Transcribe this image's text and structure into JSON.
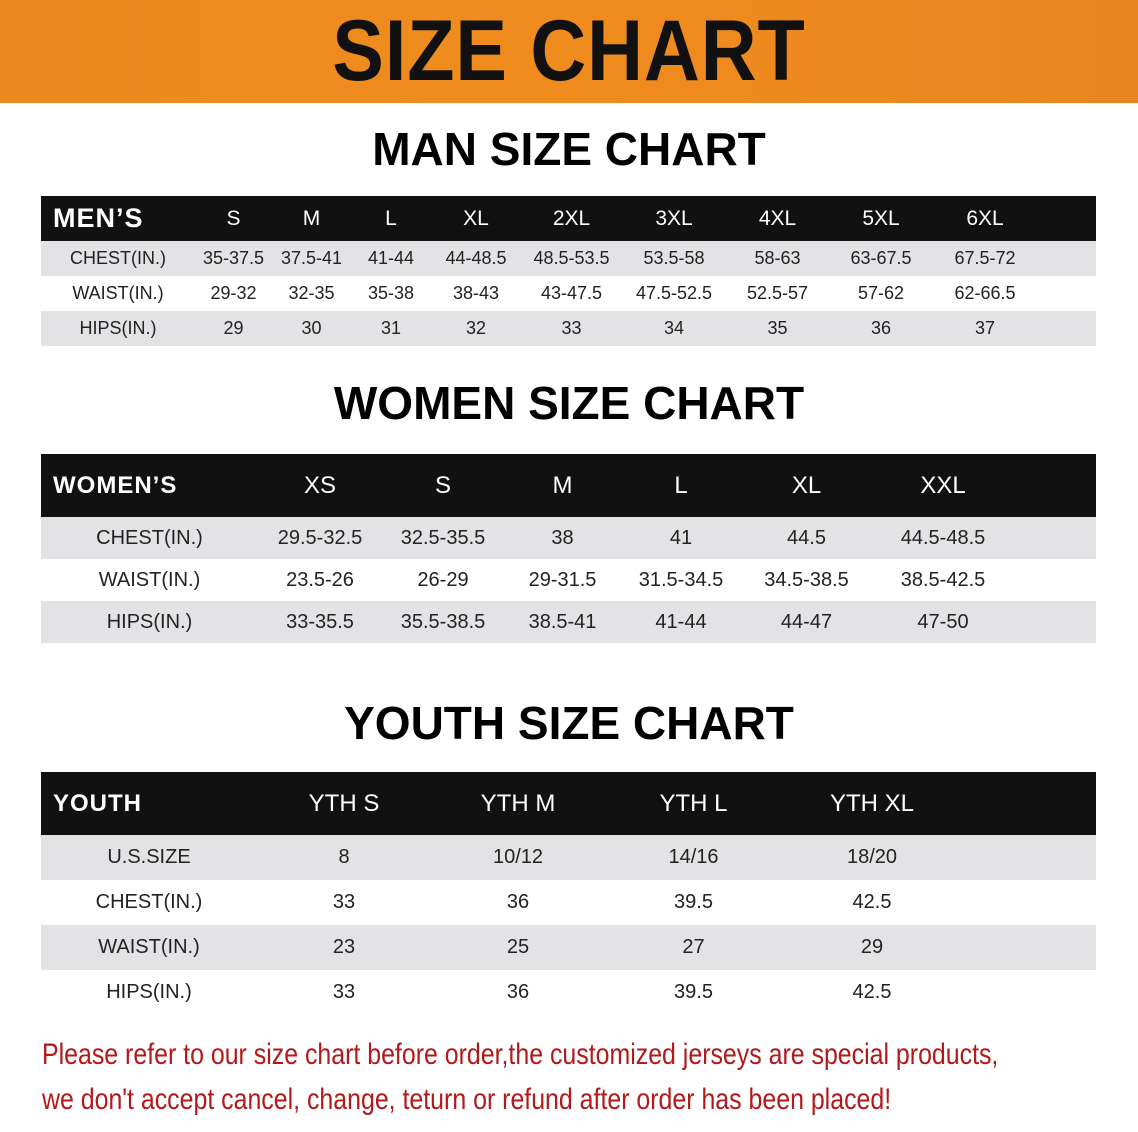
{
  "banner_title": "SIZE CHART",
  "men": {
    "title": "MAN SIZE CHART",
    "header": [
      "MEN’S",
      "S",
      "M",
      "L",
      "XL",
      "2XL",
      "3XL",
      "4XL",
      "5XL",
      "6XL"
    ],
    "rows": [
      [
        "CHEST(IN.)",
        "35-37.5",
        "37.5-41",
        "41-44",
        "44-48.5",
        "48.5-53.5",
        "53.5-58",
        "58-63",
        "63-67.5",
        "67.5-72"
      ],
      [
        "WAIST(IN.)",
        "29-32",
        "32-35",
        "35-38",
        "38-43",
        "43-47.5",
        "47.5-52.5",
        "52.5-57",
        "57-62",
        "62-66.5"
      ],
      [
        "HIPS(IN.)",
        "29",
        "30",
        "31",
        "32",
        "33",
        "34",
        "35",
        "36",
        "37"
      ]
    ]
  },
  "women": {
    "title": "WOMEN SIZE CHART",
    "header": [
      "WOMEN’S",
      "XS",
      "S",
      "M",
      "L",
      "XL",
      "XXL"
    ],
    "rows": [
      [
        "CHEST(IN.)",
        "29.5-32.5",
        "32.5-35.5",
        "38",
        "41",
        "44.5",
        "44.5-48.5"
      ],
      [
        "WAIST(IN.)",
        "23.5-26",
        "26-29",
        "29-31.5",
        "31.5-34.5",
        "34.5-38.5",
        "38.5-42.5"
      ],
      [
        "HIPS(IN.)",
        "33-35.5",
        "35.5-38.5",
        "38.5-41",
        "41-44",
        "44-47",
        "47-50"
      ]
    ]
  },
  "youth": {
    "title": "YOUTH SIZE CHART",
    "header": [
      "YOUTH",
      "YTH S",
      "YTH M",
      "YTH L",
      "YTH XL"
    ],
    "rows": [
      [
        "U.S.SIZE",
        "8",
        "10/12",
        "14/16",
        "18/20"
      ],
      [
        "CHEST(IN.)",
        "33",
        "36",
        "39.5",
        "42.5"
      ],
      [
        "WAIST(IN.)",
        "23",
        "25",
        "27",
        "29"
      ],
      [
        "HIPS(IN.)",
        "33",
        "36",
        "39.5",
        "42.5"
      ]
    ]
  },
  "note": {
    "line1": "Please refer to our size chart before order,the customized jerseys are special products,",
    "line2": "we don't accept cancel, change, teturn or refund after order has been placed!"
  },
  "colors": {
    "banner": "#ec8a1f",
    "header_row": "#111111",
    "stripe": "#e3e3e6",
    "note": "#b3191b"
  }
}
